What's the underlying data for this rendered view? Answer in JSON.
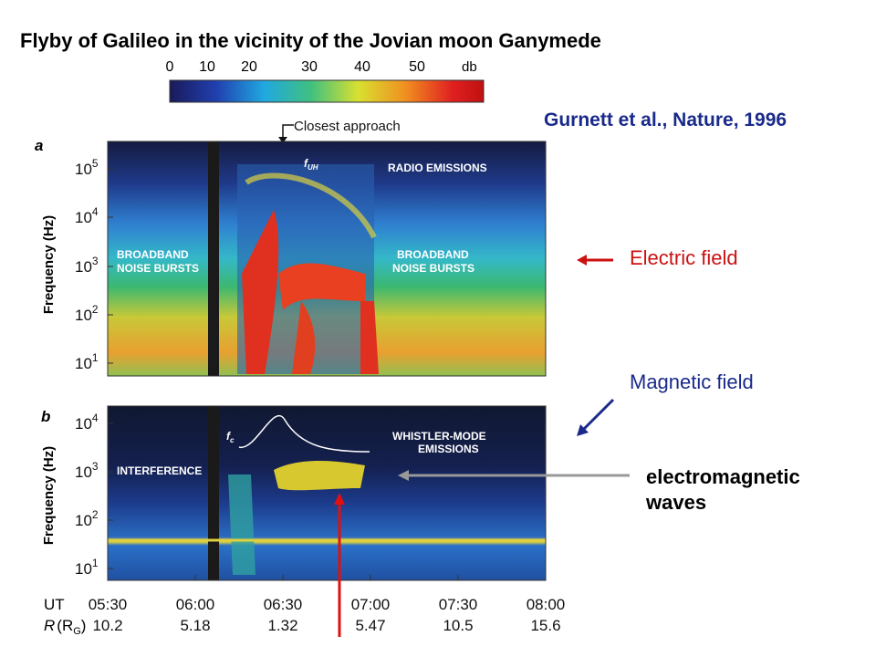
{
  "header": {
    "title": "Flyby of Galileo in the vicinity of the Jovian moon Ganymede",
    "citation": "Gurnett et al., Nature, 1996"
  },
  "colorbar": {
    "ticks": [
      "0",
      "10",
      "20",
      "30",
      "40",
      "50"
    ],
    "unit": "db"
  },
  "closest_approach": "Closest approach",
  "panel_a": {
    "label": "a",
    "y_label": "Frequency (Hz)",
    "yticks": [
      {
        "base": "10",
        "exponent": "5"
      },
      {
        "base": "10",
        "exponent": "4"
      },
      {
        "base": "10",
        "exponent": "3"
      },
      {
        "base": "10",
        "exponent": "2"
      },
      {
        "base": "10",
        "exponent": "1"
      }
    ],
    "f_uh": {
      "symbol": "f",
      "subscript": "UH"
    },
    "radio_emissions": "RADIO EMISSIONS",
    "left_bursts": [
      "BROADBAND",
      "NOISE BURSTS"
    ],
    "right_bursts": [
      "BROADBAND",
      "NOISE BURSTS"
    ]
  },
  "panel_b": {
    "label": "b",
    "y_label": "Frequency (Hz)",
    "yticks": [
      {
        "base": "10",
        "exponent": "4"
      },
      {
        "base": "10",
        "exponent": "3"
      },
      {
        "base": "10",
        "exponent": "2"
      },
      {
        "base": "10",
        "exponent": "1"
      }
    ],
    "f_c": {
      "symbol": "f",
      "subscript": "c"
    },
    "whistler": [
      "WHISTLER-MODE",
      "EMISSIONS"
    ],
    "interference": "INTERFERENCE"
  },
  "x_axis": {
    "ut_label": "UT",
    "times": [
      "05:30",
      "06:00",
      "06:30",
      "07:00",
      "07:30",
      "08:00"
    ],
    "r_label": {
      "symbol": "R",
      "unit_open": "(R",
      "unit_subscript": "G",
      "unit_close": ")"
    },
    "r_values": [
      "10.2",
      "5.18",
      "1.32",
      "5.47",
      "10.5",
      "15.6"
    ]
  },
  "annotations": {
    "electric_field": "Electric field",
    "magnetic_field": "Magnetic field",
    "em_waves": [
      "electromagnetic",
      "waves"
    ]
  }
}
